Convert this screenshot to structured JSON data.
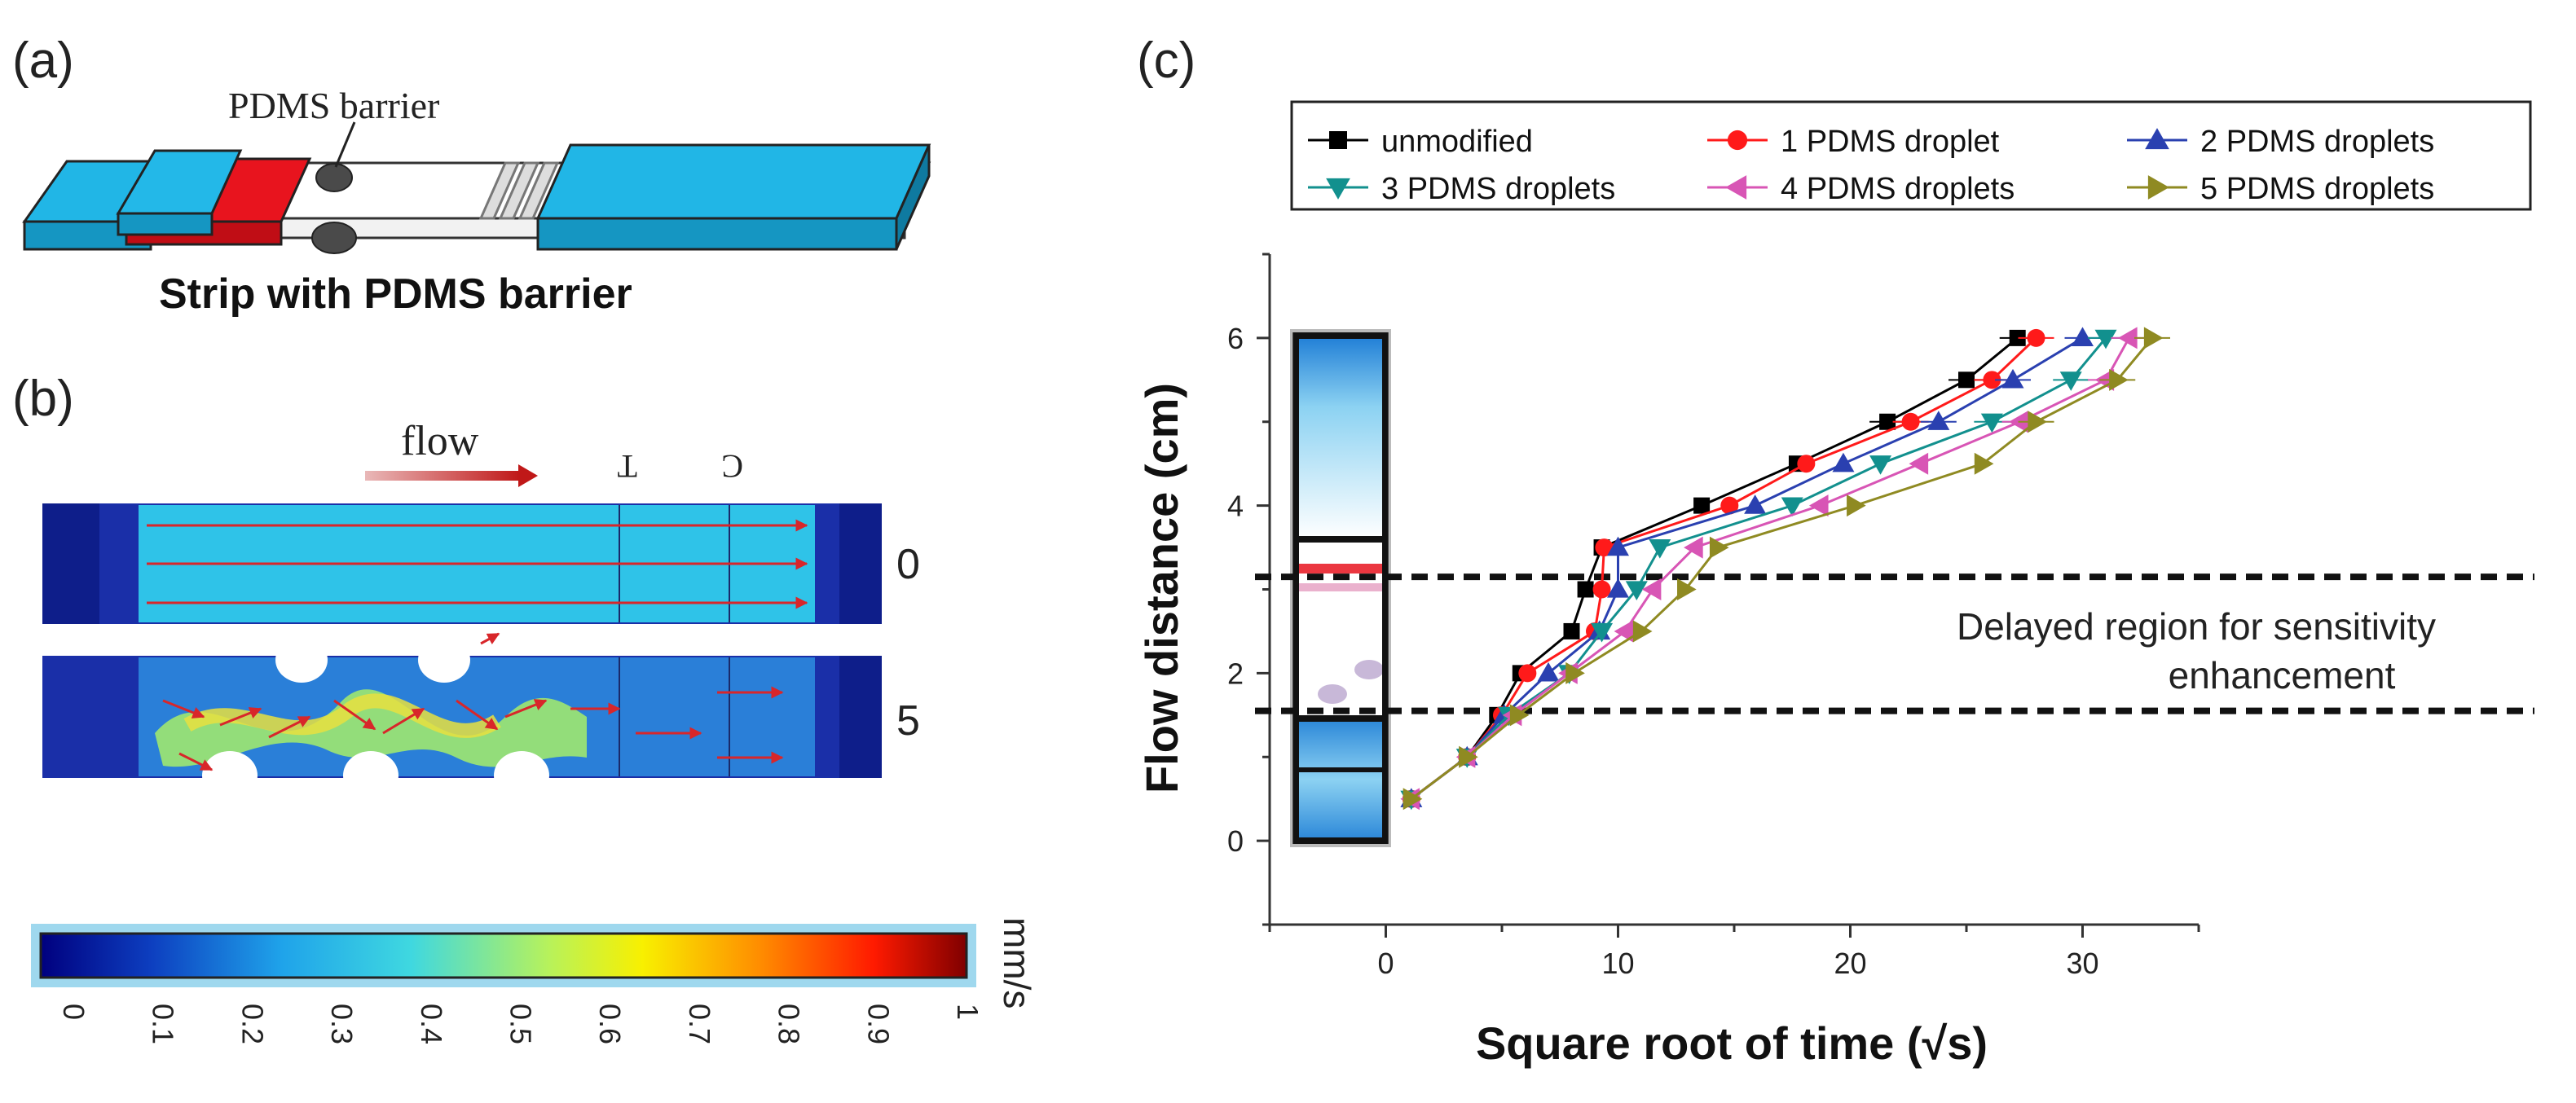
{
  "panel_labels": {
    "a": "(a)",
    "b": "(b)",
    "c": "(c)"
  },
  "panel_a": {
    "callout": "PDMS barrier",
    "caption": "Strip with PDMS barrier",
    "colors": {
      "pad": "#21b6e6",
      "conjugate": "#e8141e",
      "barrier": "#444444"
    }
  },
  "panel_b": {
    "flow_label": "flow",
    "line_labels": [
      "T",
      "C"
    ],
    "row_labels": [
      "0",
      "5"
    ],
    "colorbar": {
      "ticks": [
        "0",
        "0.1",
        "0.2",
        "0.3",
        "0.4",
        "0.5",
        "0.6",
        "0.7",
        "0.8",
        "0.9",
        "1"
      ],
      "unit": "mm/s",
      "colors": [
        "#00007f",
        "#0d3fc0",
        "#1fa3ea",
        "#3fd8e0",
        "#b8f25a",
        "#f8f000",
        "#ff8a00",
        "#ff1a00",
        "#7f0000"
      ]
    }
  },
  "chart_data": {
    "type": "line",
    "xlabel": "Square root of time (√s)",
    "ylabel": "Flow distance (cm)",
    "xlim": [
      -5,
      35
    ],
    "ylim": [
      -1,
      7
    ],
    "xticks": [
      0,
      10,
      20,
      30
    ],
    "yticks": [
      0,
      2,
      4,
      6
    ],
    "legend_position": "top",
    "annotation": [
      "Delayed region for sensitivity",
      "enhancement"
    ],
    "dashed_lines_y": [
      3.15,
      1.55
    ],
    "y": [
      0.5,
      1.0,
      1.5,
      2.0,
      2.5,
      3.0,
      3.5,
      4.0,
      4.5,
      5.0,
      5.5,
      6.0
    ],
    "series": [
      {
        "name": "unmodified",
        "marker": "square",
        "color": "#000000",
        "x": [
          1.1,
          3.5,
          4.8,
          5.8,
          8.0,
          8.6,
          9.3,
          13.6,
          17.7,
          21.6,
          25.0,
          27.2
        ]
      },
      {
        "name": "1 PDMS droplet",
        "marker": "circle",
        "color": "#ff1a1a",
        "x": [
          1.1,
          3.5,
          5.0,
          6.1,
          9.0,
          9.3,
          9.4,
          14.8,
          18.1,
          22.6,
          26.1,
          28.0
        ]
      },
      {
        "name": "2 PDMS droplets",
        "marker": "triangle-up",
        "color": "#2a40b0",
        "x": [
          1.1,
          3.5,
          5.1,
          7.0,
          9.2,
          10.0,
          10.0,
          15.9,
          19.7,
          23.8,
          27.0,
          30.0
        ]
      },
      {
        "name": "3 PDMS droplets",
        "marker": "triangle-down",
        "color": "#12908e",
        "x": [
          1.1,
          3.5,
          5.3,
          7.9,
          9.3,
          10.8,
          11.8,
          17.5,
          21.3,
          26.1,
          29.5,
          31.0
        ]
      },
      {
        "name": "4 PDMS droplets",
        "marker": "triangle-left",
        "color": "#d855b5",
        "x": [
          1.1,
          3.5,
          5.5,
          7.9,
          10.3,
          11.5,
          13.3,
          18.7,
          23.0,
          27.3,
          31.0,
          32.0
        ]
      },
      {
        "name": "5 PDMS droplets",
        "marker": "triangle-right",
        "color": "#8f8a22",
        "x": [
          1.1,
          3.5,
          5.7,
          8.1,
          11.0,
          12.9,
          14.3,
          20.2,
          25.7,
          28.0,
          31.5,
          33.0
        ]
      }
    ]
  }
}
